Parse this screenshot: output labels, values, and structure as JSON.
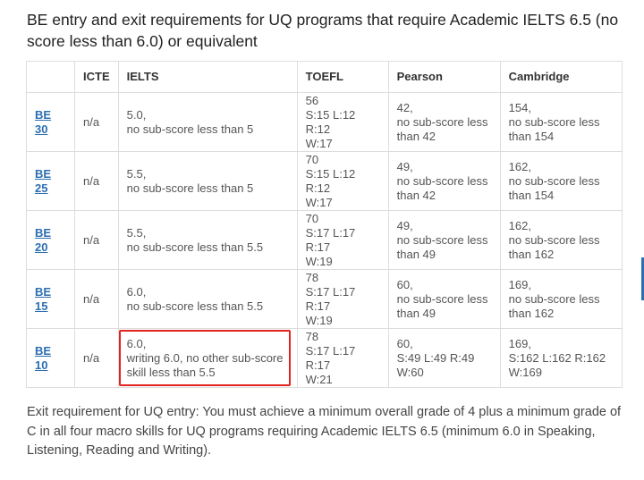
{
  "title": "BE entry and exit requirements for UQ programs that require Academic IELTS 6.5 (no score less than 6.0) or equivalent",
  "table": {
    "headers": [
      "",
      "ICTE",
      "IELTS",
      "TOEFL",
      "Pearson",
      "Cambridge"
    ],
    "rows": [
      {
        "level": "BE 30",
        "icte": "n/a",
        "ielts": [
          "5.0,",
          "no sub-score less than 5"
        ],
        "toefl": [
          "56",
          "S:15 L:12 R:12",
          "W:17"
        ],
        "pearson": [
          "42,",
          "no sub-score less",
          "than 42"
        ],
        "cambridge": [
          "154,",
          "no sub-score less",
          "than 154"
        ]
      },
      {
        "level": "BE 25",
        "icte": "n/a",
        "ielts": [
          "5.5,",
          "no sub-score less than 5"
        ],
        "toefl": [
          "70",
          "S:15 L:12 R:12",
          "W:17"
        ],
        "pearson": [
          "49,",
          "no sub-score less",
          "than 42"
        ],
        "cambridge": [
          "162,",
          "no sub-score less",
          "than 154"
        ]
      },
      {
        "level": "BE 20",
        "icte": "n/a",
        "ielts": [
          "5.5,",
          "no sub-score less than 5.5"
        ],
        "toefl": [
          "70",
          "S:17 L:17 R:17",
          "W:19"
        ],
        "pearson": [
          "49,",
          "no sub-score less",
          "than 49"
        ],
        "cambridge": [
          "162,",
          "no sub-score less",
          "than 162"
        ]
      },
      {
        "level": "BE 15",
        "icte": "n/a",
        "ielts": [
          "6.0,",
          "no sub-score less than 5.5"
        ],
        "toefl": [
          "78",
          "S:17 L:17 R:17",
          "W:19"
        ],
        "pearson": [
          "60,",
          "no sub-score less",
          "than 49"
        ],
        "cambridge": [
          "169,",
          "no sub-score less",
          "than 162"
        ]
      },
      {
        "level": "BE 10",
        "icte": "n/a",
        "ielts": [
          "6.0,",
          "writing 6.0, no other sub-score",
          "skill less than 5.5"
        ],
        "toefl": [
          "78",
          "S:17 L:17 R:17",
          "W:21"
        ],
        "pearson": [
          "60,",
          "S:49 L:49 R:49",
          "W:60"
        ],
        "cambridge": [
          "169,",
          "S:162 L:162 R:162",
          "W:169"
        ]
      }
    ]
  },
  "footnote": "Exit requirement for UQ entry: You must achieve a minimum overall grade of 4 plus a minimum grade of C in all four macro skills for UQ programs requiring Academic IELTS 6.5 (minimum 6.0 in Speaking, Listening, Reading and Writing).",
  "colors": {
    "link": "#2c6fb1",
    "highlight": "#e3231e",
    "border": "#dddddd"
  }
}
